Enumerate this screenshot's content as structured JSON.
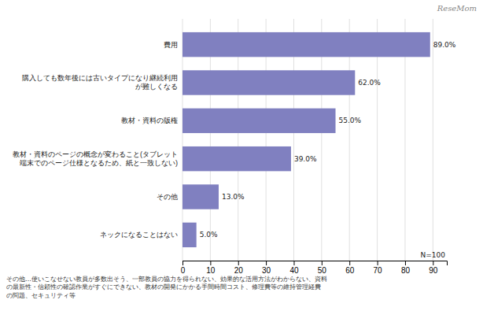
{
  "chart_data": {
    "type": "bar",
    "orientation": "horizontal",
    "categories": [
      "ネックになることはない",
      "その他",
      "教材・資料のページの概念が変わること(タブレット\n端末でのページ仕様となるため、紙と一致しない)",
      "教材・資料の版権",
      "購入しても数年後には古いタイプになり継続利用\nが難しくなる",
      "費用"
    ],
    "values": [
      5.0,
      13.0,
      39.0,
      55.0,
      62.0,
      89.0
    ],
    "value_labels": [
      "5.0%",
      "13.0%",
      "39.0%",
      "55.0%",
      "62.0%",
      "89.0%"
    ],
    "data_labels": true,
    "color": "#8080c0",
    "xlim": [
      0,
      95
    ],
    "xticks": [
      0,
      10,
      20,
      30,
      40,
      50,
      60,
      70,
      80,
      90
    ],
    "grid": true,
    "annotations": [
      "N=100",
      "その他…使いこなせない教員が多数出そう、一部教員の協力を得られない、効果的な活用方法がわからない、資料\nの最新性・信頼性の確認作業がすぐにできない、教材の開発にかかる手間時間コスト、修理費等の維持管理経費\nの問題、セキュリティ等",
      "ReseMom"
    ]
  }
}
